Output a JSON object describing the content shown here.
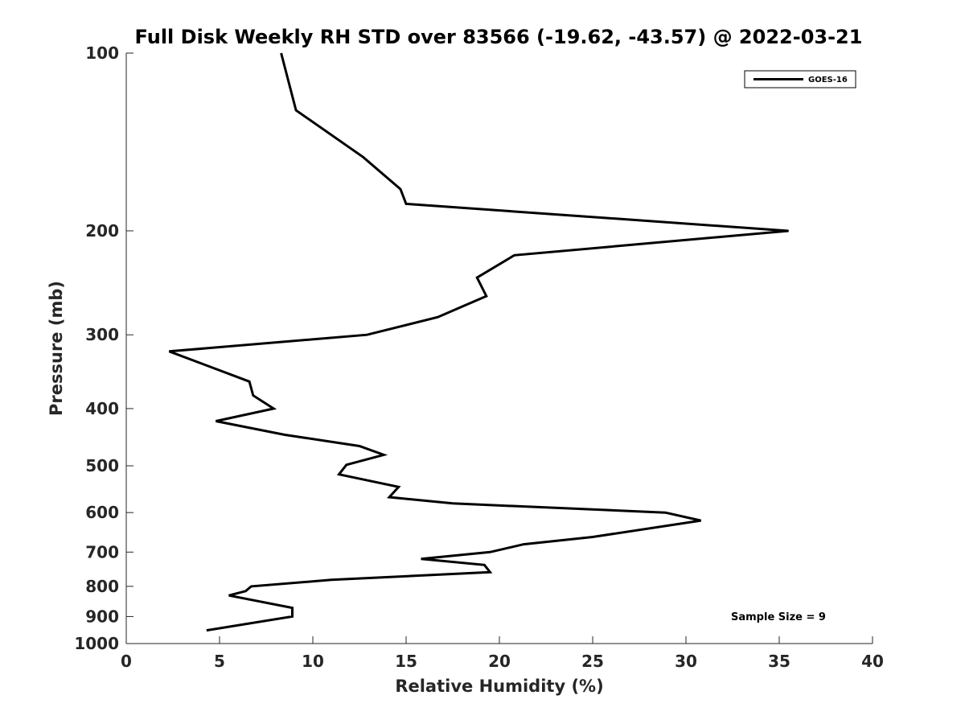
{
  "chart_data": {
    "type": "line",
    "title": "Full Disk Weekly RH STD over 83566 (-19.62, -43.57) @ 2022-03-21",
    "xlabel": "Relative Humidity (%)",
    "ylabel": "Pressure (mb)",
    "xlim": [
      0,
      40
    ],
    "ylim": [
      100,
      1000
    ],
    "yscale": "log",
    "yreverse": true,
    "grid": false,
    "x_ticks": [
      0,
      5,
      10,
      15,
      20,
      25,
      30,
      35,
      40
    ],
    "y_ticks": [
      100,
      200,
      300,
      400,
      500,
      600,
      700,
      800,
      900,
      1000
    ],
    "legend": {
      "placement": "top-right",
      "entries": [
        "GOES-16"
      ]
    },
    "annotation": "Sample Size = 9",
    "series": [
      {
        "name": "GOES-16",
        "color": "#000000",
        "points": [
          [
            8.3,
            100
          ],
          [
            9.1,
            125
          ],
          [
            12.7,
            150
          ],
          [
            14.7,
            170
          ],
          [
            15.0,
            180
          ],
          [
            35.5,
            200
          ],
          [
            20.8,
            220
          ],
          [
            18.8,
            240
          ],
          [
            19.3,
            258
          ],
          [
            16.7,
            280
          ],
          [
            12.9,
            300
          ],
          [
            2.3,
            320
          ],
          [
            6.6,
            360
          ],
          [
            6.8,
            380
          ],
          [
            7.9,
            400
          ],
          [
            4.8,
            420
          ],
          [
            8.5,
            443
          ],
          [
            12.5,
            463
          ],
          [
            13.8,
            479
          ],
          [
            11.8,
            498
          ],
          [
            11.4,
            517
          ],
          [
            14.6,
            543
          ],
          [
            14.1,
            565
          ],
          [
            17.5,
            579
          ],
          [
            28.9,
            600
          ],
          [
            30.8,
            619
          ],
          [
            25.0,
            660
          ],
          [
            21.3,
            679
          ],
          [
            19.5,
            700
          ],
          [
            15.8,
            719
          ],
          [
            19.2,
            736
          ],
          [
            19.5,
            757
          ],
          [
            11.0,
            780
          ],
          [
            6.7,
            800
          ],
          [
            6.4,
            815
          ],
          [
            5.5,
            829
          ],
          [
            8.9,
            870
          ],
          [
            8.9,
            900
          ],
          [
            4.3,
            950
          ]
        ]
      }
    ]
  }
}
